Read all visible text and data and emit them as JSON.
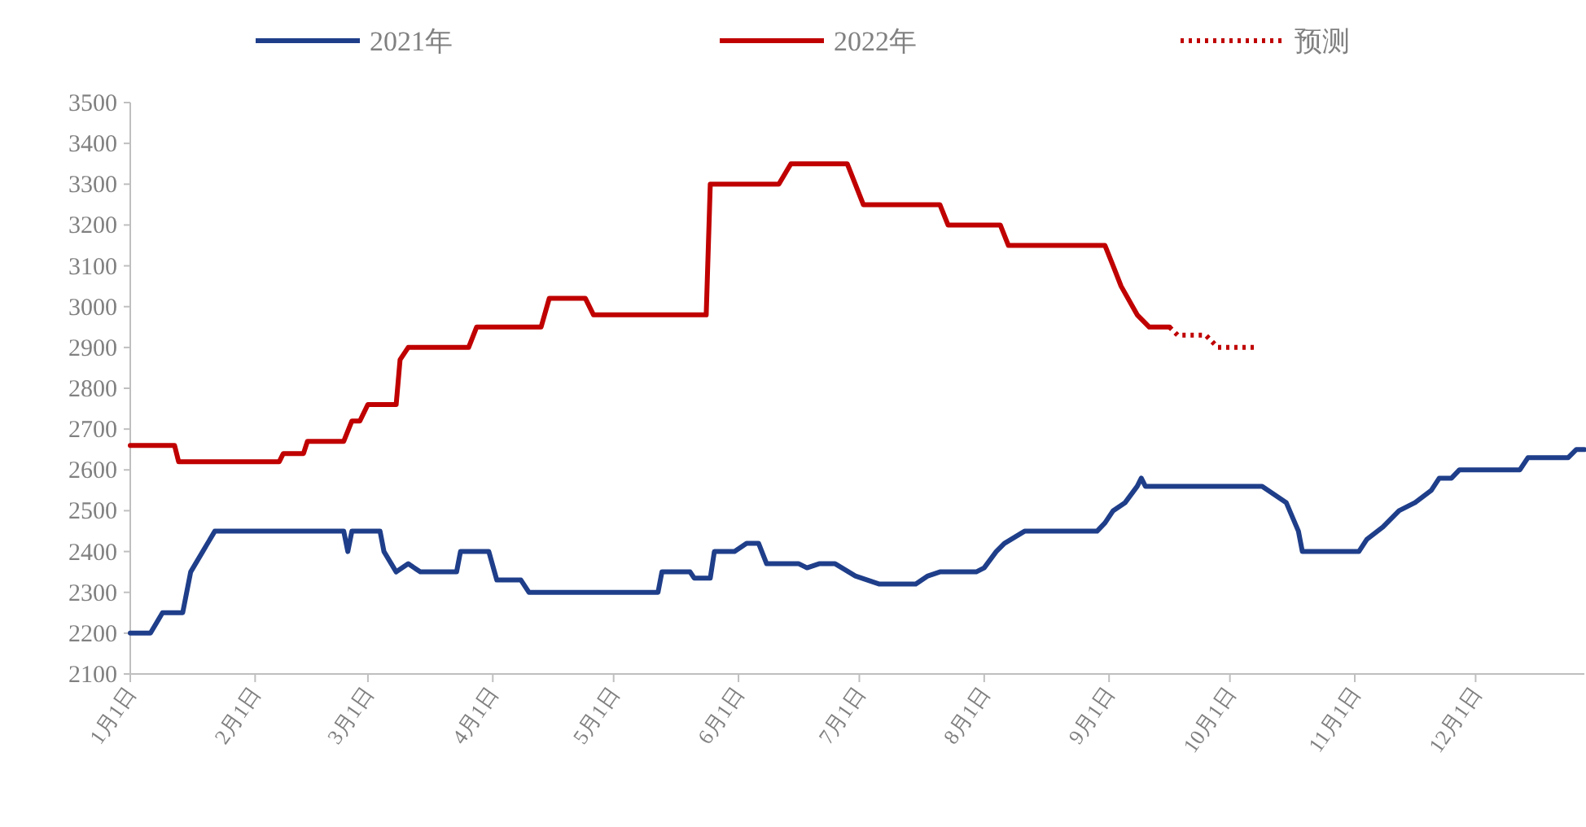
{
  "chart_data": {
    "type": "line",
    "legend": "top",
    "xlim": [
      "--01-01",
      "--12-28"
    ],
    "xticks": [
      {
        "value": "--01-01",
        "label": "1月1日"
      },
      {
        "value": "--02-01",
        "label": "2月1日"
      },
      {
        "value": "--03-01",
        "label": "3月1日"
      },
      {
        "value": "--04-01",
        "label": "4月1日"
      },
      {
        "value": "--05-01",
        "label": "5月1日"
      },
      {
        "value": "--06-01",
        "label": "6月1日"
      },
      {
        "value": "--07-01",
        "label": "7月1日"
      },
      {
        "value": "--08-01",
        "label": "8月1日"
      },
      {
        "value": "--09-01",
        "label": "9月1日"
      },
      {
        "value": "--10-01",
        "label": "10月1日"
      },
      {
        "value": "--11-01",
        "label": "11月1日"
      },
      {
        "value": "--12-01",
        "label": "12月1日"
      }
    ],
    "ylim": [
      2100,
      3500
    ],
    "yticks": [
      2100,
      2200,
      2300,
      2400,
      2500,
      2600,
      2700,
      2800,
      2900,
      3000,
      3100,
      3200,
      3300,
      3400,
      3500
    ],
    "series": [
      {
        "name": "2021年",
        "color": "#1f3e8a",
        "line_style": "solid",
        "x": [
          "--01-01",
          "--01-06",
          "--01-09",
          "--01-14",
          "--01-16",
          "--01-19",
          "--01-22",
          "--02-23",
          "--02-24",
          "--02-25",
          "--03-04",
          "--03-05",
          "--03-08",
          "--03-11",
          "--03-14",
          "--03-23",
          "--03-24",
          "--03-31",
          "--04-02",
          "--04-08",
          "--04-10",
          "--05-12",
          "--05-13",
          "--05-20",
          "--05-21",
          "--05-25",
          "--05-26",
          "--05-31",
          "--06-03",
          "--06-06",
          "--06-08",
          "--06-16",
          "--06-18",
          "--06-21",
          "--06-25",
          "--06-30",
          "--07-06",
          "--07-15",
          "--07-18",
          "--07-21",
          "--07-30",
          "--08-01",
          "--08-04",
          "--08-06",
          "--08-11",
          "--08-29",
          "--08-31",
          "--09-02",
          "--09-05",
          "--09-08",
          "--09-09",
          "--09-10",
          "--10-09",
          "--10-15",
          "--10-18",
          "--10-19",
          "--11-02",
          "--11-04",
          "--11-08",
          "--11-12",
          "--11-16",
          "--11-20",
          "--11-22",
          "--11-25",
          "--11-27",
          "--12-12",
          "--12-14",
          "--12-24",
          "--12-26",
          "--12-28"
        ],
        "values": [
          2200,
          2200,
          2250,
          2250,
          2350,
          2400,
          2450,
          2450,
          2400,
          2450,
          2450,
          2400,
          2350,
          2370,
          2350,
          2350,
          2400,
          2400,
          2330,
          2330,
          2300,
          2300,
          2350,
          2350,
          2335,
          2335,
          2400,
          2400,
          2420,
          2420,
          2370,
          2370,
          2360,
          2370,
          2370,
          2340,
          2320,
          2320,
          2340,
          2350,
          2350,
          2360,
          2400,
          2420,
          2450,
          2450,
          2470,
          2500,
          2520,
          2560,
          2580,
          2560,
          2560,
          2520,
          2450,
          2400,
          2400,
          2430,
          2460,
          2500,
          2520,
          2550,
          2580,
          2580,
          2600,
          2600,
          2630,
          2630,
          2650,
          2650
        ]
      },
      {
        "name": "2022年",
        "color": "#c00000",
        "line_style": "solid",
        "x": [
          "--01-01",
          "--01-12",
          "--01-13",
          "--02-07",
          "--02-08",
          "--02-13",
          "--02-14",
          "--02-23",
          "--02-25",
          "--02-27",
          "--03-01",
          "--03-08",
          "--03-09",
          "--03-11",
          "--03-26",
          "--03-28",
          "--04-13",
          "--04-15",
          "--04-24",
          "--04-26",
          "--05-24",
          "--05-25",
          "--06-11",
          "--06-14",
          "--06-28",
          "--07-02",
          "--07-21",
          "--07-23",
          "--08-05",
          "--08-07",
          "--08-31",
          "--09-02",
          "--09-04",
          "--09-08",
          "--09-11",
          "--09-16"
        ],
        "values": [
          2660,
          2660,
          2620,
          2620,
          2640,
          2640,
          2670,
          2670,
          2720,
          2720,
          2760,
          2760,
          2870,
          2900,
          2900,
          2950,
          2950,
          3020,
          3020,
          2980,
          2980,
          3300,
          3300,
          3350,
          3350,
          3250,
          3250,
          3200,
          3200,
          3150,
          3150,
          3100,
          3050,
          2980,
          2950,
          2950
        ]
      },
      {
        "name": "预测",
        "color": "#c00000",
        "line_style": "dotted",
        "x": [
          "--09-16",
          "--09-18",
          "--09-25",
          "--09-28",
          "--10-08"
        ],
        "values": [
          2950,
          2930,
          2930,
          2900,
          2900
        ]
      }
    ]
  }
}
